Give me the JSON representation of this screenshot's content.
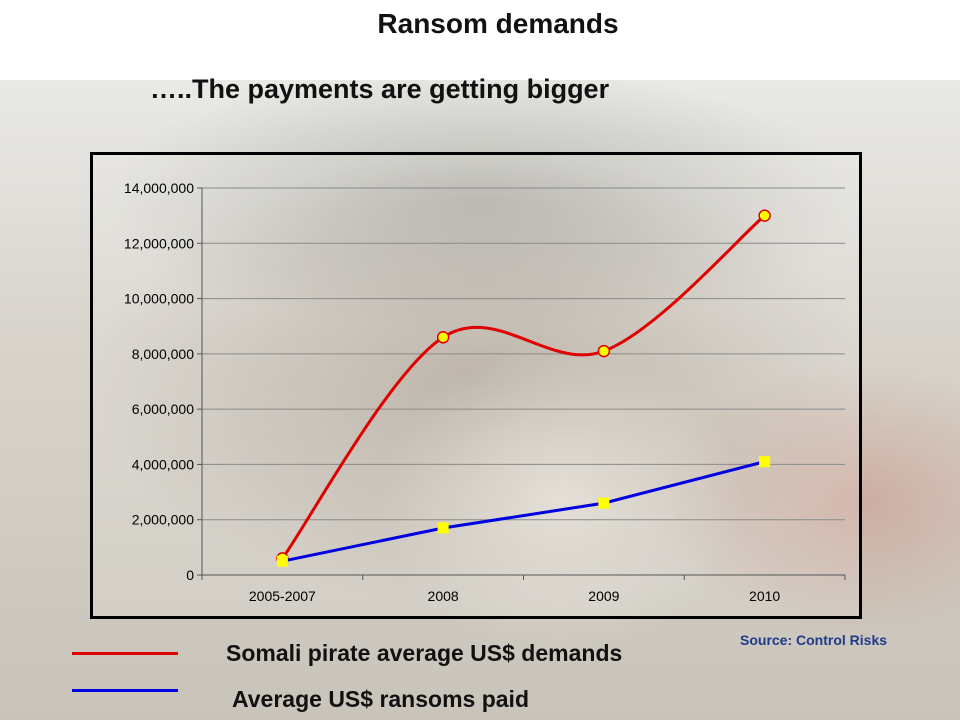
{
  "slide": {
    "title": "Ransom demands",
    "subtitle": "…..The payments are getting bigger",
    "source": "Source: Control Risks"
  },
  "legend": [
    {
      "label": "Somali pirate average US$ demands",
      "color": "#e00000"
    },
    {
      "label": "Average US$ ransoms paid",
      "color": "#0000e0"
    }
  ],
  "chart_data": {
    "type": "line",
    "title": "",
    "xlabel": "",
    "ylabel": "",
    "categories": [
      "2005-2007",
      "2008",
      "2009",
      "2010"
    ],
    "ylim": [
      0,
      14000000
    ],
    "yticks": [
      0,
      2000000,
      4000000,
      6000000,
      8000000,
      10000000,
      12000000,
      14000000
    ],
    "ytick_labels": [
      "0",
      "2,000,000",
      "4,000,000",
      "6,000,000",
      "8,000,000",
      "10,000,000",
      "12,000,000",
      "14,000,000"
    ],
    "grid": true,
    "series": [
      {
        "name": "Somali pirate average US$ demands",
        "values": [
          600000,
          8600000,
          8100000,
          13000000
        ],
        "color": "#e00000",
        "marker": "circle",
        "marker_color": "#ffff00",
        "smooth": true
      },
      {
        "name": "Average US$ ransoms paid",
        "values": [
          500000,
          1700000,
          2600000,
          4100000
        ],
        "color": "#0000e0",
        "marker": "square",
        "marker_color": "#ffff00",
        "smooth": false
      }
    ]
  }
}
